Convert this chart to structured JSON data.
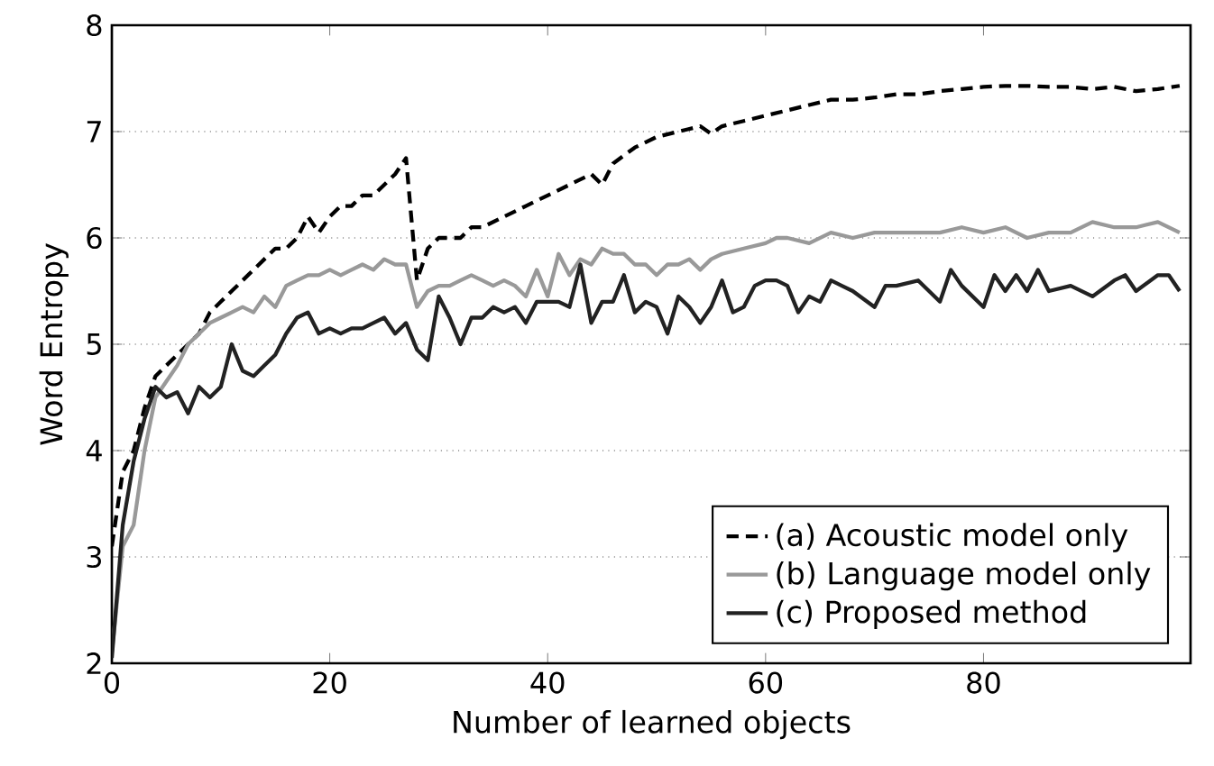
{
  "chart_data": {
    "type": "line",
    "xlabel": "Number of learned objects",
    "ylabel": "Word Entropy",
    "xlim": [
      0,
      99
    ],
    "ylim": [
      2,
      8
    ],
    "xticks": [
      0,
      20,
      40,
      60,
      80
    ],
    "yticks": [
      2,
      3,
      4,
      5,
      6,
      7,
      8
    ],
    "grid": "y",
    "legend": "bottom right",
    "marker": "none",
    "series": [
      {
        "name": "(a) Acoustic model only",
        "color": "#000000",
        "line_style": "dashed",
        "x": [
          0,
          1,
          2,
          3,
          4,
          5,
          6,
          7,
          8,
          9,
          10,
          11,
          12,
          13,
          14,
          15,
          16,
          17,
          18,
          19,
          20,
          21,
          22,
          23,
          24,
          25,
          26,
          27,
          28,
          29,
          30,
          31,
          32,
          33,
          34,
          35,
          36,
          38,
          40,
          42,
          44,
          45,
          46,
          48,
          50,
          52,
          54,
          55,
          56,
          58,
          60,
          62,
          64,
          66,
          68,
          70,
          72,
          74,
          76,
          78,
          80,
          82,
          84,
          86,
          88,
          90,
          92,
          94,
          96,
          98
        ],
        "values": [
          3.1,
          3.8,
          4.0,
          4.4,
          4.7,
          4.8,
          4.9,
          5.0,
          5.1,
          5.3,
          5.4,
          5.5,
          5.6,
          5.7,
          5.8,
          5.9,
          5.9,
          6.0,
          6.2,
          6.05,
          6.2,
          6.3,
          6.3,
          6.4,
          6.4,
          6.5,
          6.6,
          6.75,
          5.6,
          5.9,
          6.0,
          6.0,
          6.0,
          6.1,
          6.1,
          6.15,
          6.2,
          6.3,
          6.4,
          6.5,
          6.6,
          6.5,
          6.7,
          6.85,
          6.95,
          7.0,
          7.05,
          6.98,
          7.05,
          7.1,
          7.15,
          7.2,
          7.25,
          7.3,
          7.3,
          7.32,
          7.35,
          7.35,
          7.38,
          7.4,
          7.42,
          7.43,
          7.43,
          7.42,
          7.42,
          7.4,
          7.42,
          7.38,
          7.4,
          7.43
        ]
      },
      {
        "name": "(b) Language model only",
        "color": "#999999",
        "line_style": "solid",
        "x": [
          0,
          1,
          2,
          3,
          4,
          5,
          6,
          7,
          8,
          9,
          10,
          11,
          12,
          13,
          14,
          15,
          16,
          17,
          18,
          19,
          20,
          21,
          22,
          23,
          24,
          25,
          26,
          27,
          28,
          29,
          30,
          31,
          32,
          33,
          34,
          35,
          36,
          37,
          38,
          39,
          40,
          41,
          42,
          43,
          44,
          45,
          46,
          47,
          48,
          49,
          50,
          51,
          52,
          53,
          54,
          55,
          56,
          58,
          60,
          61,
          62,
          64,
          66,
          68,
          70,
          72,
          74,
          76,
          78,
          80,
          82,
          84,
          86,
          88,
          90,
          92,
          94,
          96,
          98
        ],
        "values": [
          2.1,
          3.1,
          3.3,
          4.0,
          4.5,
          4.65,
          4.8,
          5.0,
          5.1,
          5.2,
          5.25,
          5.3,
          5.35,
          5.3,
          5.45,
          5.35,
          5.55,
          5.6,
          5.65,
          5.65,
          5.7,
          5.65,
          5.7,
          5.75,
          5.7,
          5.8,
          5.75,
          5.75,
          5.35,
          5.5,
          5.55,
          5.55,
          5.6,
          5.65,
          5.6,
          5.55,
          5.6,
          5.55,
          5.45,
          5.7,
          5.45,
          5.85,
          5.65,
          5.8,
          5.75,
          5.9,
          5.85,
          5.85,
          5.75,
          5.75,
          5.65,
          5.75,
          5.75,
          5.8,
          5.7,
          5.8,
          5.85,
          5.9,
          5.95,
          6.0,
          6.0,
          5.95,
          6.05,
          6.0,
          6.05,
          6.05,
          6.05,
          6.05,
          6.1,
          6.05,
          6.1,
          6.0,
          6.05,
          6.05,
          6.15,
          6.1,
          6.1,
          6.15,
          6.05
        ]
      },
      {
        "name": "(c) Proposed method",
        "color": "#222222",
        "line_style": "solid",
        "x": [
          0,
          1,
          2,
          3,
          4,
          5,
          6,
          7,
          8,
          9,
          10,
          11,
          12,
          13,
          14,
          15,
          16,
          17,
          18,
          19,
          20,
          21,
          22,
          23,
          24,
          25,
          26,
          27,
          28,
          29,
          30,
          31,
          32,
          33,
          34,
          35,
          36,
          37,
          38,
          39,
          40,
          41,
          42,
          43,
          44,
          45,
          46,
          47,
          48,
          49,
          50,
          51,
          52,
          53,
          54,
          55,
          56,
          57,
          58,
          59,
          60,
          61,
          62,
          63,
          64,
          65,
          66,
          67,
          68,
          70,
          71,
          72,
          74,
          76,
          77,
          78,
          80,
          81,
          82,
          83,
          84,
          85,
          86,
          88,
          90,
          92,
          93,
          94,
          96,
          97,
          98
        ],
        "values": [
          2.05,
          3.3,
          3.9,
          4.3,
          4.6,
          4.5,
          4.55,
          4.35,
          4.6,
          4.5,
          4.6,
          5.0,
          4.75,
          4.7,
          4.8,
          4.9,
          5.1,
          5.25,
          5.3,
          5.1,
          5.15,
          5.1,
          5.15,
          5.15,
          5.2,
          5.25,
          5.1,
          5.2,
          4.95,
          4.85,
          5.45,
          5.25,
          5.0,
          5.25,
          5.25,
          5.35,
          5.3,
          5.35,
          5.2,
          5.4,
          5.4,
          5.4,
          5.35,
          5.75,
          5.2,
          5.4,
          5.4,
          5.65,
          5.3,
          5.4,
          5.35,
          5.1,
          5.45,
          5.35,
          5.2,
          5.35,
          5.6,
          5.3,
          5.35,
          5.55,
          5.6,
          5.6,
          5.55,
          5.3,
          5.45,
          5.4,
          5.6,
          5.55,
          5.5,
          5.35,
          5.55,
          5.55,
          5.6,
          5.4,
          5.7,
          5.55,
          5.35,
          5.65,
          5.5,
          5.65,
          5.5,
          5.7,
          5.5,
          5.55,
          5.45,
          5.6,
          5.65,
          5.5,
          5.65,
          5.65,
          5.5
        ]
      }
    ]
  }
}
